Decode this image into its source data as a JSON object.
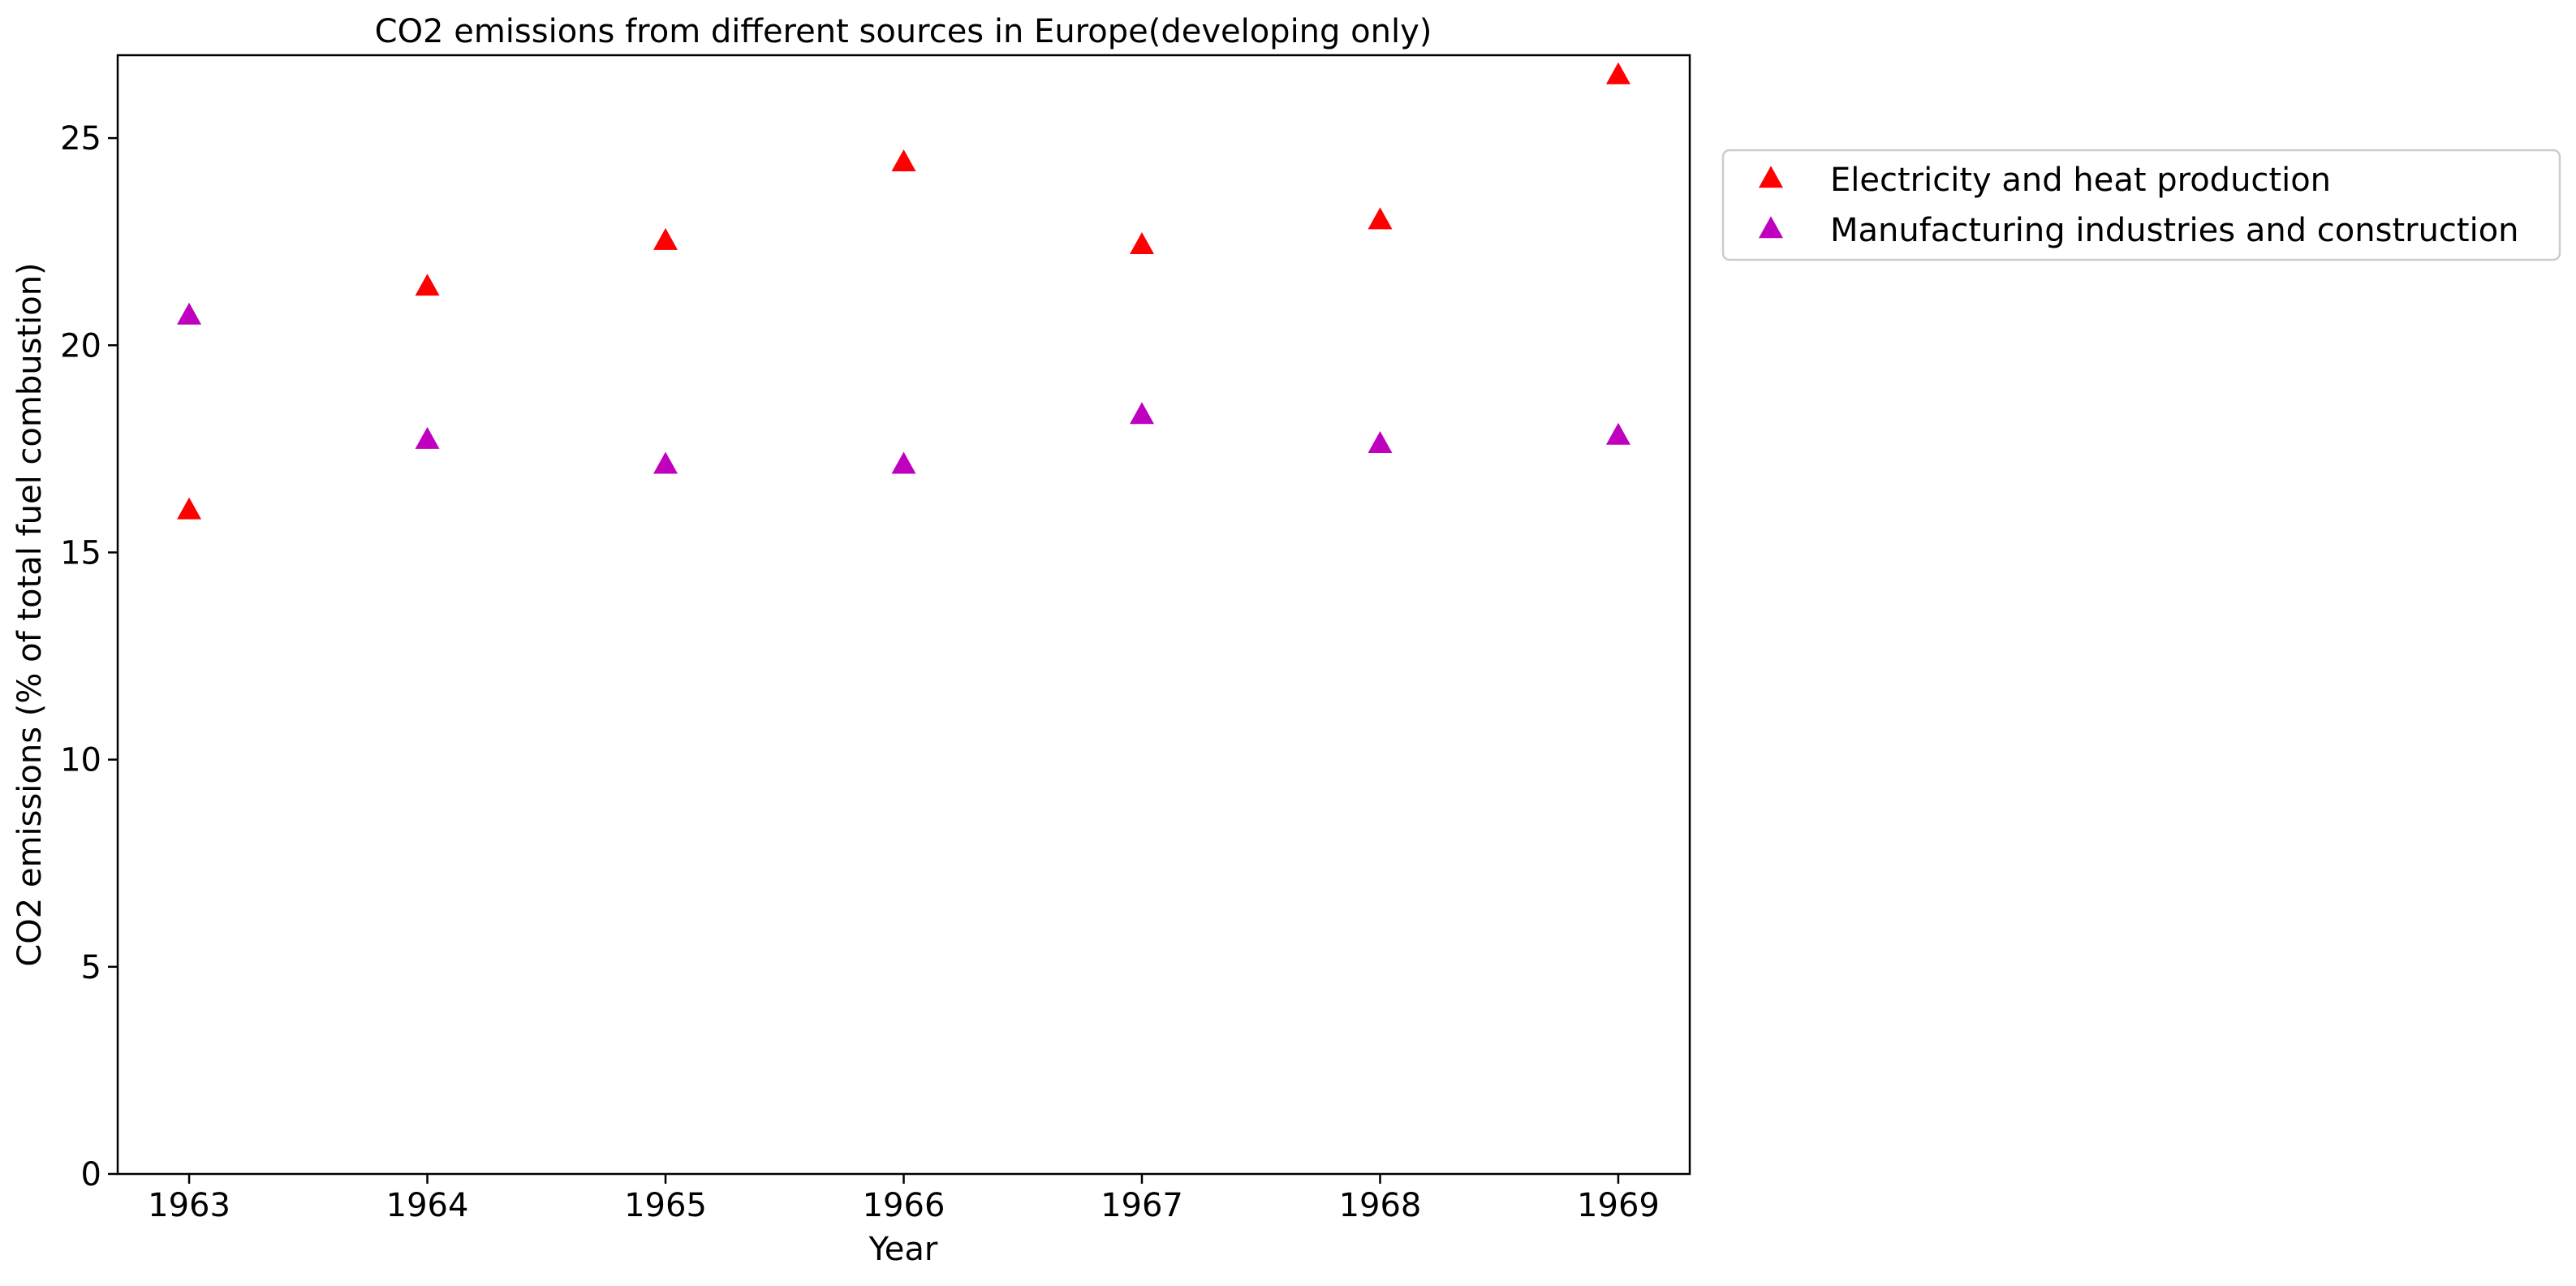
{
  "chart_data": {
    "type": "scatter",
    "title": "CO2 emissions from different sources in Europe(developing only)",
    "xlabel": "Year",
    "ylabel": "CO2 emissions (% of total fuel combustion)",
    "x": [
      1963,
      1964,
      1965,
      1966,
      1967,
      1968,
      1969
    ],
    "x_ticks": [
      "1963",
      "1964",
      "1965",
      "1966",
      "1967",
      "1968",
      "1969"
    ],
    "y_ticks": [
      "0",
      "5",
      "10",
      "15",
      "20",
      "25"
    ],
    "xlim": [
      1962.7,
      1969.3
    ],
    "ylim": [
      0,
      27
    ],
    "grid": false,
    "legend_position": "outside-right-top",
    "marker": "triangle-up",
    "series": [
      {
        "name": "Electricity and heat production",
        "color": "#ff0000",
        "values": [
          16.0,
          21.4,
          22.5,
          24.4,
          22.4,
          23.0,
          26.5
        ]
      },
      {
        "name": "Manufacturing industries and construction",
        "color": "#bf00bf",
        "values": [
          20.7,
          17.7,
          17.1,
          17.1,
          18.3,
          17.6,
          17.8
        ]
      }
    ]
  }
}
